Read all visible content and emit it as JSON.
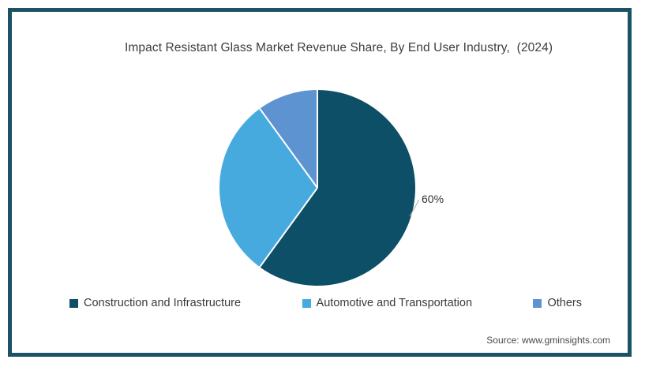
{
  "title": "Impact Resistant Glass Market Revenue Share, By End User Industry,  (2024)",
  "source": "Source: www.gminsights.com",
  "frame": {
    "border_color": "#1b5365"
  },
  "chart_data": {
    "type": "pie",
    "title": "Impact Resistant Glass Market Revenue Share, By End User Industry,  (2024)",
    "categories": [
      "Construction and Infrastructure",
      "Automotive and Transportation",
      "Others"
    ],
    "values": [
      60,
      30,
      10
    ],
    "unit": "%",
    "colors": [
      "#0d4f66",
      "#47aadf",
      "#5e93d1"
    ],
    "start_angle_deg": 0,
    "direction": "clockwise",
    "slice_labels": [
      {
        "text": "60%",
        "category": "Construction and Infrastructure"
      }
    ],
    "legend_position": "bottom",
    "source": "Source: www.gminsights.com"
  }
}
